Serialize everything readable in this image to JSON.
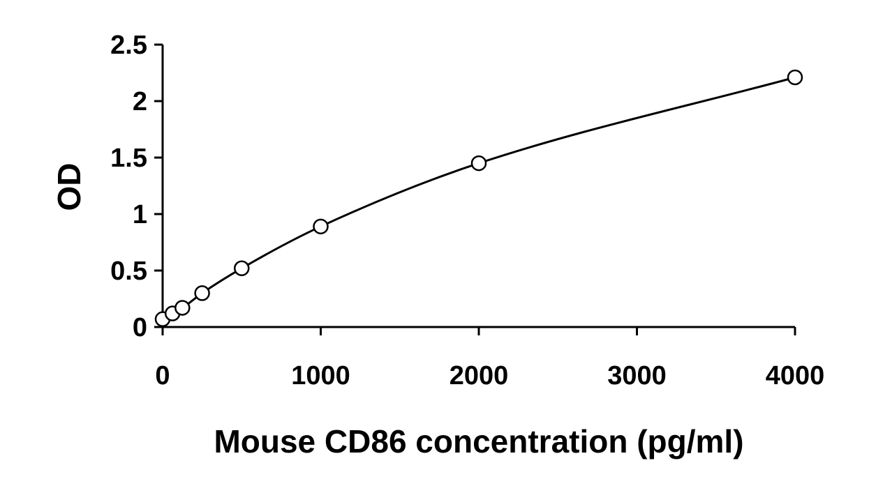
{
  "chart_data": {
    "type": "scatter",
    "title": "",
    "xlabel": "Mouse CD86 concentration (pg/ml)",
    "ylabel": "OD",
    "xlim": [
      0,
      4000
    ],
    "ylim": [
      0,
      2.5
    ],
    "x_ticks": [
      0,
      1000,
      2000,
      3000,
      4000
    ],
    "x_tick_labels": [
      "0",
      "1000",
      "2000",
      "3000",
      "4000"
    ],
    "y_ticks": [
      0,
      0.5,
      1,
      1.5,
      2,
      2.5
    ],
    "y_tick_labels": [
      "0",
      "0.5",
      "1",
      "1.5",
      "2",
      "2.5"
    ],
    "grid": false,
    "legend": "none",
    "series": [
      {
        "x": [
          0,
          62.5,
          125,
          250,
          500,
          1000,
          2000,
          4000
        ],
        "y": [
          0.07,
          0.12,
          0.17,
          0.3,
          0.52,
          0.89,
          1.45,
          2.21
        ],
        "marker": "open-circle",
        "fit_line": "smooth-curve",
        "color": "#000000"
      }
    ]
  }
}
